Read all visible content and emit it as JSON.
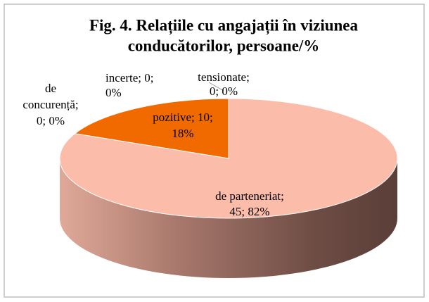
{
  "chart_data": {
    "type": "pie",
    "title": [
      "Fig. 4. Relațiile cu angajații în viziunea",
      "conducătorilor, persoane/%"
    ],
    "categories": [
      "tensionate",
      "de parteneriat",
      "de concurență",
      "incerte",
      "pozitive"
    ],
    "values": [
      0,
      45,
      0,
      0,
      10
    ],
    "value_labels": [
      [
        "tensionate;",
        "0; 0%"
      ],
      [
        "de parteneriat;",
        "45; 82%"
      ],
      [
        "de",
        "concurență;",
        "0; 0%"
      ],
      [
        "incerte; 0;",
        "0%"
      ],
      [
        "pozitive; 10;",
        "18%"
      ]
    ],
    "colors": [
      "#a5a5a5",
      "#fbbcaa",
      "#ffc000",
      "#5b9bd5",
      "#f06a00"
    ],
    "three_d": true
  }
}
